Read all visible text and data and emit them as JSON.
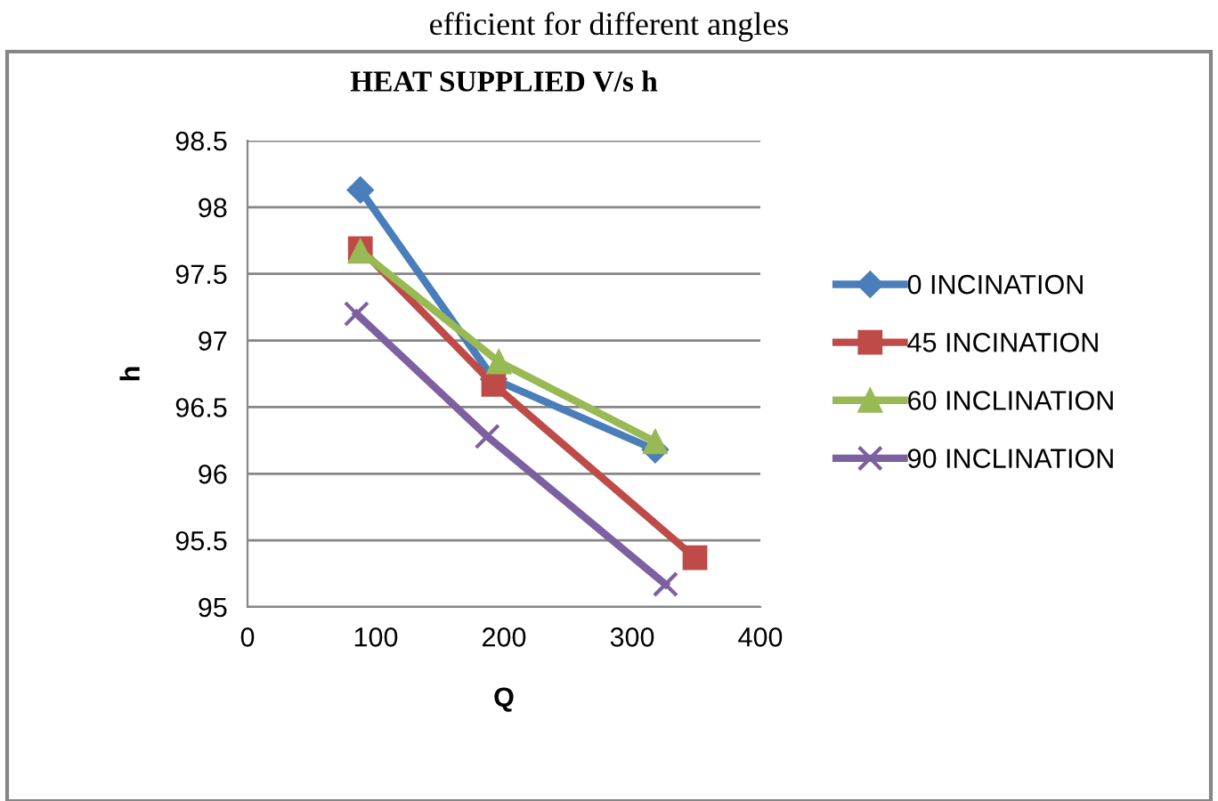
{
  "chart_data": {
    "type": "line",
    "title": "HEAT SUPPLIED V/s h",
    "annotations": [
      "efficient for different angles"
    ],
    "xlabel": "Q",
    "ylabel": "h",
    "xlim": [
      0,
      400
    ],
    "xticks": [
      0,
      100,
      200,
      300,
      400
    ],
    "ylim": [
      95,
      98.5
    ],
    "yticks": [
      95,
      95.5,
      96,
      96.5,
      97,
      97.5,
      98,
      98.5
    ],
    "grid": "y",
    "legend": "right",
    "series": [
      {
        "name": "0 INCINATION",
        "color": "#4a7ebb",
        "marker": "diamond",
        "x": [
          88,
          192,
          318
        ],
        "values": [
          98.13,
          96.71,
          96.18
        ]
      },
      {
        "name": "45 INCINATION",
        "color": "#be4b48",
        "marker": "square",
        "x": [
          88,
          192,
          349
        ],
        "values": [
          97.69,
          96.67,
          95.37
        ]
      },
      {
        "name": "60 INCLINATION",
        "color": "#98b954",
        "marker": "triangle",
        "x": [
          88,
          196,
          318
        ],
        "values": [
          97.67,
          96.84,
          96.24
        ]
      },
      {
        "name": "90 INCLINATION",
        "color": "#7d60a0",
        "marker": "cross",
        "x": [
          85,
          187,
          326
        ],
        "values": [
          97.2,
          96.28,
          95.17
        ]
      }
    ]
  }
}
